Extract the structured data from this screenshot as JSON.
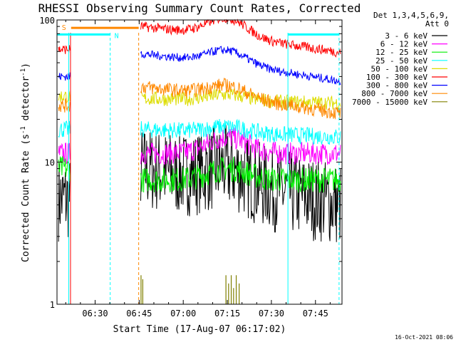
{
  "chart_data": {
    "type": "line",
    "title": "RHESSI Observing Summary Count Rates, Corrected",
    "xlabel": "Start Time (17-Aug-07 06:17:02)",
    "ylabel_main": "Corrected Count Rate (s",
    "ylabel_sup1": "-1",
    "ylabel_mid": " detector",
    "ylabel_sup2": "-1",
    "ylabel_end": ")",
    "y_scale": "log",
    "ylim": [
      1,
      100
    ],
    "xlim_minutes": [
      0,
      97
    ],
    "x_ticks": [
      {
        "label": "06:30",
        "minute": 12.97
      },
      {
        "label": "06:45",
        "minute": 27.97
      },
      {
        "label": "07:00",
        "minute": 42.97
      },
      {
        "label": "07:15",
        "minute": 57.97
      },
      {
        "label": "07:30",
        "minute": 72.97
      },
      {
        "label": "07:45",
        "minute": 87.97
      }
    ],
    "y_ticks": [
      {
        "label": "1",
        "value": 1
      },
      {
        "label": "10",
        "value": 10
      },
      {
        "label": "100",
        "value": 100
      }
    ],
    "legend_header": [
      "Det 1,3,4,5,6,9,",
      "Att 0"
    ],
    "legend_position": "right",
    "series": [
      {
        "name": "3 - 6 keV",
        "color": "#000000",
        "early": 5.5,
        "start": 9.0,
        "bump": 1.25,
        "end": 5.0,
        "noise": 0.3
      },
      {
        "name": "6 - 12 keV",
        "color": "#ff00ff",
        "early": 11.5,
        "start": 11.5,
        "bump": 1.3,
        "end": 11.5,
        "noise": 0.08
      },
      {
        "name": "12 - 25 keV",
        "color": "#00ee00",
        "early": 9.0,
        "start": 7.5,
        "bump": 1.2,
        "end": 7.5,
        "noise": 0.09
      },
      {
        "name": "25 - 50 keV",
        "color": "#00ffff",
        "early": 17.0,
        "start": 17.0,
        "bump": 1.1,
        "end": 15.0,
        "noise": 0.06
      },
      {
        "name": "50 - 100 keV",
        "color": "#dddd00",
        "early": 29.0,
        "start": 28.0,
        "bump": 1.1,
        "end": 26.0,
        "noise": 0.05
      },
      {
        "name": "100 - 300 keV",
        "color": "#ff0000",
        "early": 62.0,
        "start": 90.0,
        "bump": 1.35,
        "end": 59.0,
        "noise": 0.035
      },
      {
        "name": "300 - 800 keV",
        "color": "#0000ff",
        "early": 40.0,
        "start": 58.0,
        "bump": 1.25,
        "end": 37.0,
        "noise": 0.03
      },
      {
        "name": "800 - 7000 keV",
        "color": "#ff8800",
        "early": 25.0,
        "start": 34.0,
        "bump": 1.2,
        "end": 22.0,
        "noise": 0.05
      },
      {
        "name": "7000 - 15000 keV",
        "color": "#808000",
        "early": 1.0,
        "start": 1.0,
        "bump": 1.0,
        "end": 1.0,
        "noise": 0.0
      }
    ],
    "segments_minutes": [
      [
        0.5,
        4.6
      ],
      [
        28.5,
        96.5
      ]
    ],
    "flag_bars": [
      {
        "label": "S",
        "color": "#ff8800",
        "start_minute": 4.8,
        "end_minute": 27.8,
        "level": 88
      },
      {
        "label": "N",
        "color": "#00ffff",
        "start_minute": 0,
        "end_minute": 18.1,
        "level": 79
      },
      {
        "label": "",
        "color": "#00ffff",
        "start_minute": 78.6,
        "end_minute": 96.0,
        "level": 79
      }
    ],
    "vertical_markers": [
      {
        "minute": 4.0,
        "color": "#00ffff",
        "style": "solid"
      },
      {
        "minute": 4.6,
        "color": "#ff0000",
        "style": "solid"
      },
      {
        "minute": 18.1,
        "color": "#00ffff",
        "style": "dashed"
      },
      {
        "minute": 27.8,
        "color": "#ff8800",
        "style": "dashed"
      },
      {
        "minute": 78.6,
        "color": "#00ffff",
        "style": "solid"
      },
      {
        "minute": 96.0,
        "color": "#00ffff",
        "style": "dashed"
      }
    ],
    "timestamp": "16-Oct-2021 08:06"
  }
}
